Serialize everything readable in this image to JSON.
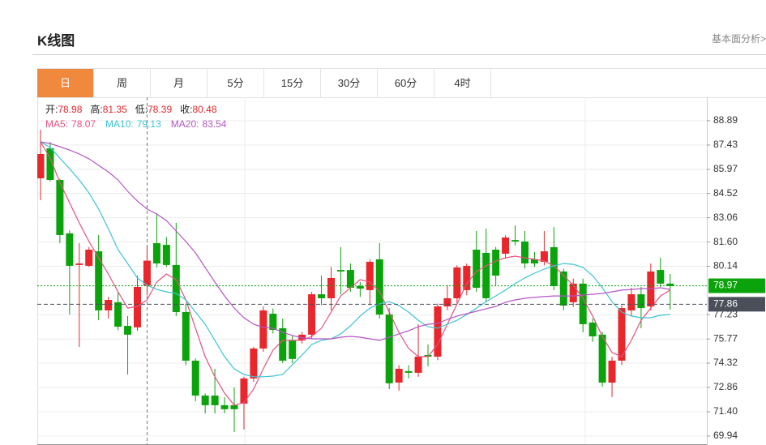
{
  "header": {
    "title": "K线图",
    "link": "基本面分析>"
  },
  "tabs": {
    "items": [
      "日",
      "周",
      "月",
      "5分",
      "15分",
      "30分",
      "60分",
      "4时"
    ],
    "active": 0
  },
  "chart_data": {
    "type": "candlestick",
    "ohlc_info": [
      {
        "label": "开:",
        "value": 78.98
      },
      {
        "label": "高:",
        "value": 81.35
      },
      {
        "label": "低:",
        "value": 78.39
      },
      {
        "label": "收:",
        "value": 80.48
      }
    ],
    "up_color": "#e8262b",
    "down_color": "#0ba30b",
    "open": [
      85.43,
      87.23,
      85.33,
      82.12,
      80.22,
      80.17,
      81.04,
      77.49,
      77.98,
      76.56,
      76.47,
      78.98,
      81.53,
      81.43,
      80.22,
      77.39,
      74.47,
      72.37,
      72.37,
      71.79,
      71.79,
      71.89,
      73.4,
      75.2,
      77.29,
      76.42,
      75.69,
      75.69,
      76.03,
      78.46,
      78.22,
      79.92,
      79.92,
      78.95,
      78.71,
      80.56,
      77.24,
      73.15,
      73.84,
      73.74,
      74.81,
      74.71,
      77.73,
      78.22,
      78.71,
      81.14,
      80.95,
      81.14,
      80.9,
      81.72,
      81.63,
      80.56,
      80.41,
      81.29,
      79.83,
      77.98,
      79.1,
      76.76,
      76.03,
      73.15,
      74.47,
      77.49,
      78.46,
      77.73,
      79.92,
      79.1
    ],
    "close": [
      86.89,
      85.33,
      82.02,
      80.17,
      80.31,
      81.14,
      77.49,
      78.12,
      76.51,
      76.03,
      78.9,
      80.48,
      80.31,
      80.22,
      77.39,
      74.47,
      72.37,
      71.79,
      71.79,
      71.55,
      71.55,
      73.4,
      75.2,
      77.49,
      76.32,
      74.47,
      74.57,
      76.03,
      78.46,
      78.22,
      79.44,
      79.83,
      78.85,
      78.8,
      80.41,
      77.24,
      73.11,
      73.98,
      73.74,
      74.71,
      74.71,
      77.73,
      78.22,
      80.07,
      80.17,
      78.85,
      78.22,
      79.58,
      81.87,
      81.63,
      80.31,
      80.31,
      81.04,
      78.95,
      77.78,
      79.1,
      76.66,
      75.93,
      73.15,
      74.47,
      77.63,
      78.46,
      77.63,
      79.83,
      79.1,
      78.95
    ],
    "high": [
      88.35,
      87.62,
      85.4,
      82.3,
      81.53,
      81.3,
      82.02,
      78.3,
      78.61,
      77.15,
      79.58,
      81.35,
      83.33,
      81.9,
      82.75,
      77.9,
      74.6,
      72.5,
      73.98,
      72.28,
      72.86,
      73.5,
      75.3,
      77.73,
      77.6,
      77.0,
      76.0,
      76.2,
      78.6,
      79.58,
      80.1,
      81.29,
      80.31,
      79.2,
      80.56,
      81.53,
      77.63,
      74.2,
      74.2,
      76.66,
      75.44,
      77.9,
      79.0,
      80.2,
      80.3,
      82.26,
      82.41,
      81.3,
      82.0,
      82.6,
      82.26,
      81.0,
      82.26,
      82.5,
      80.0,
      79.4,
      79.4,
      77.0,
      76.2,
      74.7,
      77.8,
      78.85,
      78.9,
      80.31,
      80.65,
      79.68
    ],
    "low": [
      84.11,
      85.23,
      81.53,
      77.24,
      75.3,
      80.1,
      76.9,
      77.0,
      76.3,
      73.64,
      76.27,
      78.39,
      80.07,
      80.1,
      77.15,
      74.2,
      72.03,
      71.3,
      71.3,
      71.3,
      70.18,
      70.33,
      73.2,
      75.0,
      76.1,
      74.32,
      74.32,
      75.5,
      75.8,
      77.8,
      77.5,
      78.46,
      78.6,
      78.3,
      77.8,
      77.0,
      72.76,
      72.67,
      73.4,
      73.5,
      74.13,
      74.5,
      77.5,
      77.9,
      78.4,
      78.6,
      78.02,
      79.0,
      80.6,
      81.4,
      80.0,
      80.1,
      80.2,
      78.7,
      77.5,
      77.7,
      76.17,
      75.6,
      72.9,
      72.28,
      74.2,
      77.15,
      76.42,
      77.5,
      78.9,
      77.54
    ],
    "ma": [
      {
        "name": "MA5:",
        "legend_value": 78.07,
        "color": "#e8507f",
        "values": [
          87.62,
          86.64,
          85.18,
          83.96,
          82.75,
          81.63,
          80.65,
          79.68,
          78.61,
          77.63,
          77.73,
          78.12,
          79.19,
          79.68,
          79.34,
          78.12,
          76.42,
          74.71,
          73.5,
          72.52,
          71.79,
          71.94,
          72.76,
          73.98,
          75.1,
          75.69,
          75.69,
          75.69,
          75.93,
          76.42,
          77.39,
          78.36,
          78.85,
          79.34,
          79.19,
          78.61,
          77.39,
          76.17,
          75.2,
          74.71,
          74.71,
          75.44,
          76.66,
          77.88,
          79.1,
          79.83,
          80.17,
          80.46,
          80.65,
          80.75,
          80.65,
          80.56,
          80.46,
          80.17,
          79.58,
          79.0,
          78.22,
          77.15,
          75.93,
          74.96,
          74.71,
          75.69,
          76.9,
          77.63,
          78.36,
          78.71
        ]
      },
      {
        "name": "MA10:",
        "legend_value": 79.13,
        "color": "#3cc4d4",
        "values": [
          87.62,
          87.28,
          86.64,
          86.01,
          85.33,
          84.55,
          83.58,
          82.41,
          81.14,
          80.31,
          79.44,
          79.0,
          78.75,
          78.61,
          78.51,
          78.12,
          77.39,
          76.66,
          75.69,
          74.71,
          73.98,
          73.64,
          73.5,
          73.5,
          73.54,
          73.64,
          74.23,
          74.81,
          75.44,
          75.69,
          75.78,
          76.08,
          76.56,
          77.15,
          77.63,
          77.88,
          78.02,
          77.78,
          77.39,
          76.9,
          76.51,
          76.42,
          76.66,
          76.9,
          77.24,
          77.63,
          78.02,
          78.36,
          78.71,
          79.1,
          79.44,
          79.73,
          79.97,
          80.17,
          80.31,
          80.26,
          80.07,
          79.58,
          78.85,
          78.02,
          77.39,
          77.15,
          77.05,
          77.05,
          77.2,
          77.24
        ]
      },
      {
        "name": "MA20:",
        "legend_value": 83.54,
        "color": "#b455c6",
        "values": [
          87.62,
          87.52,
          87.33,
          87.13,
          86.89,
          86.6,
          86.21,
          85.82,
          85.33,
          84.65,
          84.06,
          83.58,
          83.28,
          82.89,
          82.26,
          81.63,
          80.95,
          80.07,
          79.19,
          78.36,
          77.63,
          77.05,
          76.66,
          76.47,
          76.42,
          76.17,
          75.98,
          75.83,
          75.78,
          75.78,
          75.78,
          75.88,
          75.93,
          75.88,
          75.78,
          75.69,
          75.88,
          76.08,
          76.27,
          76.51,
          76.66,
          76.71,
          76.95,
          77.15,
          77.29,
          77.44,
          77.59,
          77.73,
          77.98,
          78.12,
          78.22,
          78.27,
          78.32,
          78.36,
          78.36,
          78.36,
          78.41,
          78.46,
          78.51,
          78.61,
          78.71,
          78.75,
          78.8,
          78.8,
          78.85,
          78.75
        ]
      }
    ],
    "price_lines": [
      {
        "value": 78.97,
        "color": "#0ba30b"
      },
      {
        "value": 77.86,
        "color": "#4a4f5a"
      }
    ],
    "ylim": [
      69.4,
      90.3
    ],
    "yticks": [
      69.94,
      {
        "value": 71.4,
        "label": "71.40"
      },
      72.86,
      74.32,
      75.77,
      77.23,
      80.14,
      {
        "value": 81.6,
        "label": "81.60"
      },
      83.06,
      84.52,
      85.97,
      87.43,
      88.89
    ],
    "grid": true
  }
}
